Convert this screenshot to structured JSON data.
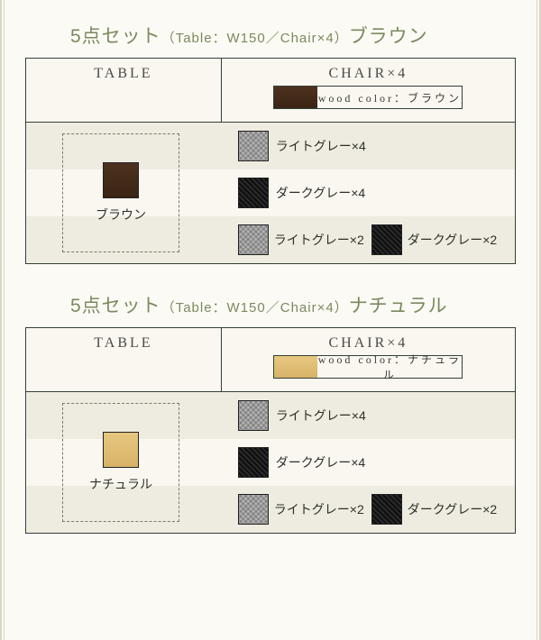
{
  "colors": {
    "page_bg": "#fcfaf4",
    "panel_bg": "#f9f7ef",
    "stripe_bg": "#eeece0",
    "border": "#334038",
    "title": "#7a8a60",
    "text": "#2f2f2a"
  },
  "sets": [
    {
      "title_main": "5点セット",
      "title_sub": "（Table：W150／Chair×4）",
      "title_color_name": "ブラウン",
      "header": {
        "table": "TABLE",
        "chair": "CHAIR×4"
      },
      "wood": {
        "label": "wood color：ブラウン",
        "swatch_class": "sw-brown"
      },
      "table_option": {
        "label": "ブラウン",
        "swatch_class": "sw-brown"
      },
      "rows": [
        {
          "stripe": true,
          "items": [
            {
              "swatch_class": "sw-lightgray",
              "label": "ライトグレー×4"
            }
          ]
        },
        {
          "stripe": false,
          "items": [
            {
              "swatch_class": "sw-darkgray",
              "label": "ダークグレー×4"
            }
          ]
        },
        {
          "stripe": true,
          "items": [
            {
              "swatch_class": "sw-lightgray",
              "label": "ライトグレー×2"
            },
            {
              "swatch_class": "sw-darkgray",
              "label": "ダークグレー×2"
            }
          ]
        }
      ]
    },
    {
      "title_main": "5点セット",
      "title_sub": "（Table：W150／Chair×4）",
      "title_color_name": "ナチュラル",
      "header": {
        "table": "TABLE",
        "chair": "CHAIR×4"
      },
      "wood": {
        "label": "wood color：ナチュラル",
        "swatch_class": "sw-natural"
      },
      "table_option": {
        "label": "ナチュラル",
        "swatch_class": "sw-natural"
      },
      "rows": [
        {
          "stripe": true,
          "items": [
            {
              "swatch_class": "sw-lightgray",
              "label": "ライトグレー×4"
            }
          ]
        },
        {
          "stripe": false,
          "items": [
            {
              "swatch_class": "sw-darkgray",
              "label": "ダークグレー×4"
            }
          ]
        },
        {
          "stripe": true,
          "items": [
            {
              "swatch_class": "sw-lightgray",
              "label": "ライトグレー×2"
            },
            {
              "swatch_class": "sw-darkgray",
              "label": "ダークグレー×2"
            }
          ]
        }
      ]
    }
  ]
}
